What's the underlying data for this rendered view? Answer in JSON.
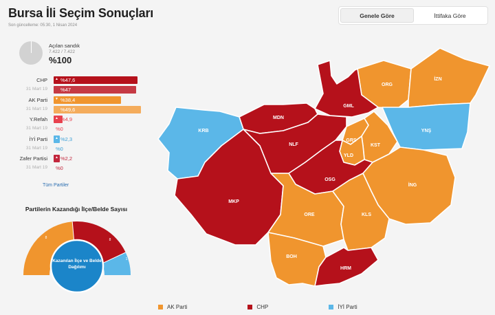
{
  "title": "Bursa İli Seçim Sonuçları",
  "updated": "Son güncelleme: 05:30, 1 Nisan 2024",
  "toggle": {
    "options": [
      "Genele Göre",
      "İttifaka Göre"
    ],
    "selected": "Genele Göre"
  },
  "ballot": {
    "label": "Açılan sandık",
    "count": "7.422 / 7.422",
    "percent": "%100"
  },
  "colors": {
    "chp": "#b5111b",
    "akp": "#f0952e",
    "iyi": "#5bb7e8",
    "yrefah": "#e8414e",
    "zafer": "#c2263c",
    "gray": "#d2d2d2",
    "gauge_center": "#1b85c9"
  },
  "parties": [
    {
      "name": "CHP",
      "current": "%47,6",
      "previous_label": "31 Mart 19",
      "previous": "%47",
      "current_value": 47.6,
      "previous_value": 47,
      "arrow": "up"
    },
    {
      "name": "AK Parti",
      "current": "%38,4",
      "previous_label": "31 Mart 19",
      "previous": "%49,6",
      "current_value": 38.4,
      "previous_value": 49.6,
      "arrow": "down"
    },
    {
      "name": "Y.Refah",
      "current": "%4,9",
      "previous_label": "31 Mart 19",
      "previous": "%0",
      "current_value": 4.9,
      "previous_value": 0,
      "arrow": "up"
    },
    {
      "name": "İYİ Parti",
      "current": "%2,3",
      "previous_label": "31 Mart 19",
      "previous": "%0",
      "current_value": 2.3,
      "previous_value": 0,
      "arrow": "up"
    },
    {
      "name": "Zafer Partisi",
      "current": "%2,2",
      "previous_label": "31 Mart 19",
      "previous": "%0",
      "current_value": 2.2,
      "previous_value": 0,
      "arrow": "up"
    }
  ],
  "all_parties_link": "Tüm Partiler",
  "wins": {
    "title": "Partilerin Kazandığı İlçe/Belde Sayısı",
    "center_label": "Kazanılan İlçe ve Belde Dağılımı",
    "segments": [
      {
        "party": "AK Parti",
        "value": "8"
      },
      {
        "party": "CHP",
        "value": "8"
      },
      {
        "party": "İYİ Parti",
        "value": "1"
      }
    ]
  },
  "districts": [
    "ORG",
    "İZN",
    "GML",
    "MDN",
    "KRB",
    "NLF",
    "GRS",
    "KST",
    "YLD",
    "YNŞ",
    "OSG",
    "İNG",
    "MKP",
    "ORE",
    "KLS",
    "BOH",
    "HRM"
  ],
  "legend": [
    "AK Parti",
    "CHP",
    "İYİ Parti"
  ]
}
